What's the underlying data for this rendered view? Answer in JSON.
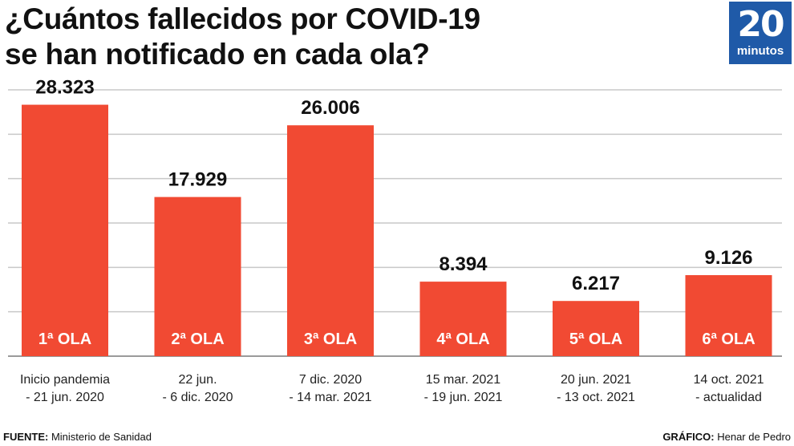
{
  "title_line1": "¿Cuántos fallecidos por COVID-19",
  "title_line2": "se han notificado en cada ola?",
  "logo": {
    "number": "20",
    "word": "minutos",
    "color": "#1f5aa8"
  },
  "footer": {
    "source_label": "FUENTE:",
    "source_value": "Ministerio de Sanidad",
    "graphic_label": "GRÁFICO:",
    "graphic_value": "Henar de Pedro"
  },
  "colors": {
    "bar": "#f14a33",
    "grid": "#c8c8c8",
    "axis": "#9a9a9a",
    "label_inside": "#ffffff"
  },
  "chart_data": {
    "type": "bar",
    "categories": [
      "1ª OLA",
      "2ª OLA",
      "3ª OLA",
      "4ª OLA",
      "5ª OLA",
      "6ª OLA"
    ],
    "values": [
      28323,
      17929,
      26006,
      8394,
      6217,
      9126
    ],
    "value_labels": [
      "28.323",
      "17.929",
      "26.006",
      "8.394",
      "6.217",
      "9.126"
    ],
    "periods": [
      [
        "Inicio pandemia",
        "- 21 jun. 2020"
      ],
      [
        "22 jun.",
        "- 6 dic. 2020"
      ],
      [
        "7 dic. 2020",
        "- 14 mar. 2021"
      ],
      [
        "15 mar. 2021",
        "- 19 jun. 2021"
      ],
      [
        "20 jun. 2021",
        "- 13 oct. 2021"
      ],
      [
        "14 oct. 2021",
        "- actualidad"
      ]
    ],
    "ylim": [
      0,
      30000
    ],
    "grid": true
  }
}
